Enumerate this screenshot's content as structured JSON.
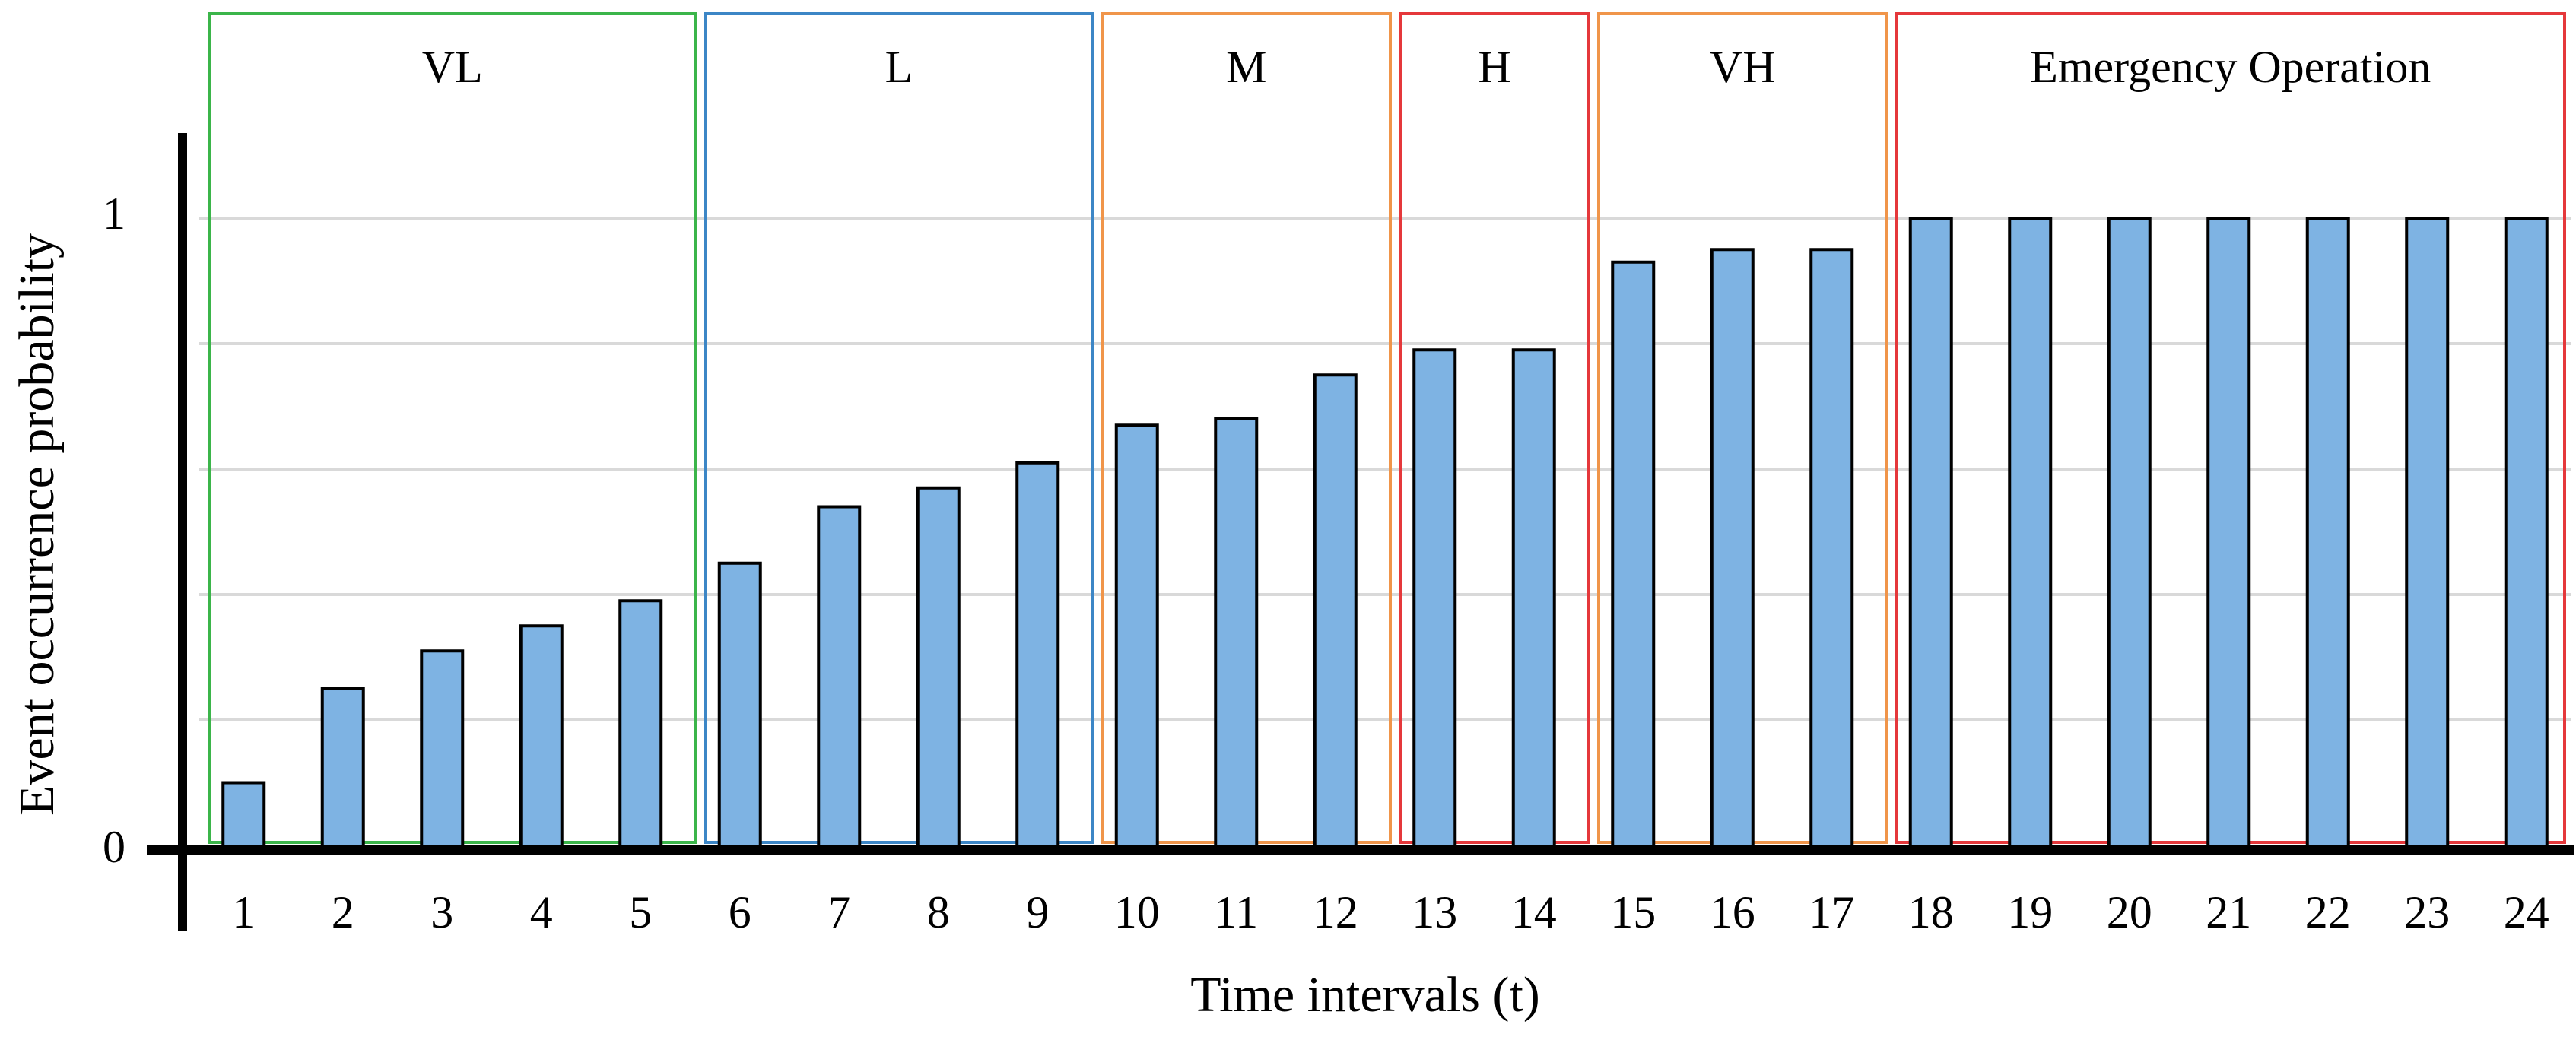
{
  "chart_data": {
    "type": "bar",
    "title": "",
    "xlabel": "Time intervals (t)",
    "ylabel": "Event occurrence probability",
    "ylim": [
      0,
      1
    ],
    "y_tick_labels": [
      "0",
      "1"
    ],
    "grid": true,
    "categories": [
      "1",
      "2",
      "3",
      "4",
      "5",
      "6",
      "7",
      "8",
      "9",
      "10",
      "11",
      "12",
      "13",
      "14",
      "15",
      "16",
      "17",
      "18",
      "19",
      "20",
      "21",
      "22",
      "23",
      "24"
    ],
    "values": [
      0.1,
      0.25,
      0.31,
      0.35,
      0.39,
      0.45,
      0.54,
      0.57,
      0.61,
      0.67,
      0.68,
      0.75,
      0.79,
      0.79,
      0.93,
      0.95,
      0.95,
      1.0,
      1.0,
      1.0,
      1.0,
      1.0,
      1.0,
      1.0
    ],
    "bar_color": "#7EB3E3",
    "regions": [
      {
        "label": "VL",
        "from": 1,
        "to": 5,
        "color": "#3BB54A"
      },
      {
        "label": "L",
        "from": 6,
        "to": 9,
        "color": "#3C86C6"
      },
      {
        "label": "M",
        "from": 10,
        "to": 12,
        "color": "#F0954A"
      },
      {
        "label": "H",
        "from": 13,
        "to": 14,
        "color": "#E5383B"
      },
      {
        "label": "VH",
        "from": 15,
        "to": 17,
        "color": "#F0954A"
      },
      {
        "label": "Emergency Operation",
        "from": 18,
        "to": 24,
        "color": "#E5383B"
      }
    ]
  }
}
